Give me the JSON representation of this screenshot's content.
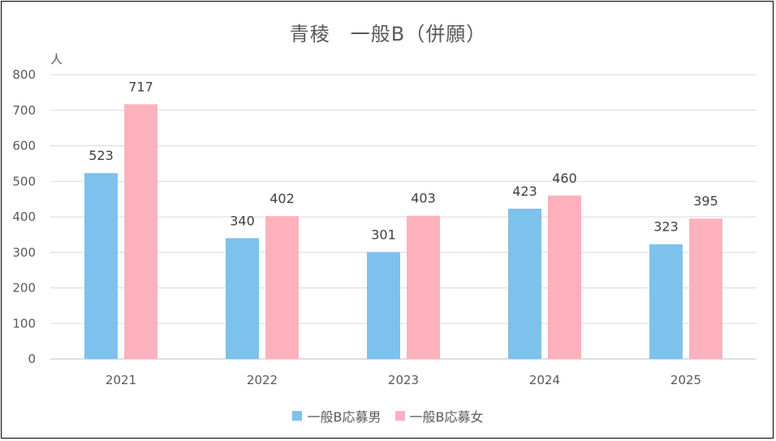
{
  "chart_data": {
    "type": "bar",
    "title": "青稜　一般B（併願）",
    "ylabel": "人",
    "xlabel": "",
    "ylim": [
      0,
      800
    ],
    "yticks": [
      0,
      100,
      200,
      300,
      400,
      500,
      600,
      700,
      800
    ],
    "grid": true,
    "legend": "bottom",
    "categories": [
      "2021",
      "2022",
      "2023",
      "2024",
      "2025"
    ],
    "series": [
      {
        "name": "一般B応募男",
        "color": "#7DC1ED",
        "values": [
          523,
          340,
          301,
          423,
          323
        ]
      },
      {
        "name": "一般B応募女",
        "color": "#FDB1BC",
        "values": [
          717,
          402,
          403,
          460,
          395
        ]
      }
    ]
  }
}
